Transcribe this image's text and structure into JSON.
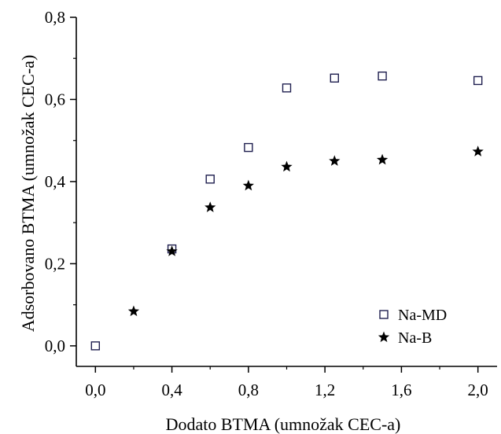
{
  "chart_data": {
    "type": "scatter",
    "title": "",
    "xlabel": "Dodato BTMA (umnožak CEC-a)",
    "ylabel": "Adsorbovano BTMA (umnožak CEC-a)",
    "xlim": [
      -0.1,
      2.1
    ],
    "ylim": [
      -0.05,
      0.8
    ],
    "x_ticks": [
      0.0,
      0.4,
      0.8,
      1.2,
      1.6,
      2.0
    ],
    "x_tick_labels": [
      "0,0",
      "0,4",
      "0,8",
      "1,2",
      "1,6",
      "2,0"
    ],
    "y_ticks": [
      0.0,
      0.2,
      0.4,
      0.6,
      0.8
    ],
    "y_tick_labels": [
      "0,0",
      "0,2",
      "0,4",
      "0,6",
      "0,8"
    ],
    "grid": false,
    "legend_position": "bottom-right",
    "series": [
      {
        "name": "Na-MD",
        "marker": "open-square",
        "color": "#1f1f4f",
        "points": [
          {
            "x": 0.0,
            "y": 0.0
          },
          {
            "x": 0.4,
            "y": 0.236
          },
          {
            "x": 0.6,
            "y": 0.406
          },
          {
            "x": 0.8,
            "y": 0.483
          },
          {
            "x": 1.0,
            "y": 0.628
          },
          {
            "x": 1.25,
            "y": 0.652
          },
          {
            "x": 1.5,
            "y": 0.657
          },
          {
            "x": 2.0,
            "y": 0.646
          }
        ]
      },
      {
        "name": "Na-B",
        "marker": "filled-star",
        "color": "#000000",
        "points": [
          {
            "x": 0.2,
            "y": 0.084
          },
          {
            "x": 0.4,
            "y": 0.23
          },
          {
            "x": 0.6,
            "y": 0.337
          },
          {
            "x": 0.8,
            "y": 0.39
          },
          {
            "x": 1.0,
            "y": 0.436
          },
          {
            "x": 1.25,
            "y": 0.45
          },
          {
            "x": 1.5,
            "y": 0.453
          },
          {
            "x": 2.0,
            "y": 0.473
          }
        ]
      }
    ]
  }
}
